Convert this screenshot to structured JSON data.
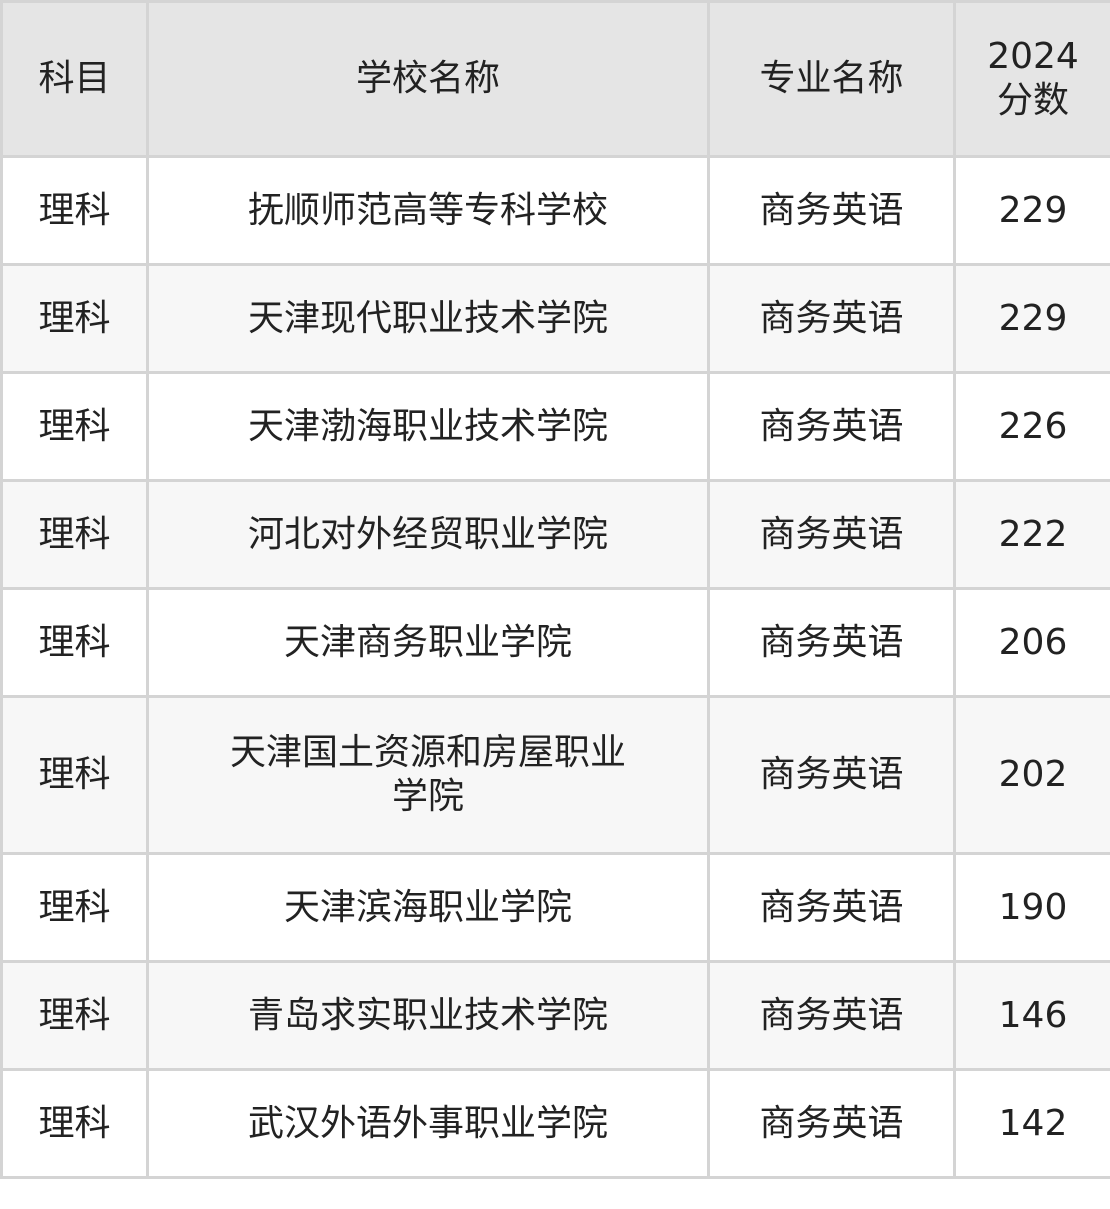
{
  "table": {
    "headers": [
      "科目",
      "学校名称",
      "专业名称",
      "2024分数"
    ],
    "header_score_lines": [
      "2024",
      "分数"
    ],
    "rows": [
      {
        "subject": "理科",
        "school": "抚顺师范高等专科学校",
        "major": "商务英语",
        "score": "229"
      },
      {
        "subject": "理科",
        "school": "天津现代职业技术学院",
        "major": "商务英语",
        "score": "229"
      },
      {
        "subject": "理科",
        "school": "天津渤海职业技术学院",
        "major": "商务英语",
        "score": "226"
      },
      {
        "subject": "理科",
        "school": "河北对外经贸职业学院",
        "major": "商务英语",
        "score": "222"
      },
      {
        "subject": "理科",
        "school": "天津商务职业学院",
        "major": "商务英语",
        "score": "206"
      },
      {
        "subject": "理科",
        "school": "天津国土资源和房屋职业学院",
        "major": "商务英语",
        "score": "202"
      },
      {
        "subject": "理科",
        "school": "天津滨海职业学院",
        "major": "商务英语",
        "score": "190"
      },
      {
        "subject": "理科",
        "school": "青岛求实职业技术学院",
        "major": "商务英语",
        "score": "146"
      },
      {
        "subject": "理科",
        "school": "武汉外语外事职业学院",
        "major": "商务英语",
        "score": "142"
      }
    ]
  }
}
